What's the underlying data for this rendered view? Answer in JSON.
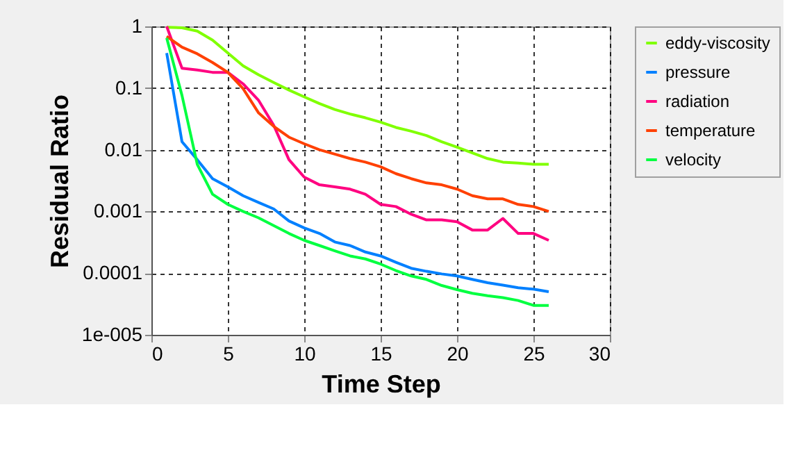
{
  "chart_data": {
    "type": "line",
    "xlabel": "Time Step",
    "ylabel": "Residual Ratio",
    "x": [
      1,
      2,
      3,
      4,
      5,
      6,
      7,
      8,
      9,
      10,
      11,
      12,
      13,
      14,
      15,
      16,
      17,
      18,
      19,
      20,
      21,
      22,
      23,
      24,
      25,
      26
    ],
    "series": [
      {
        "name": "eddy-viscosity",
        "color": "#80ff00",
        "values": [
          0.97,
          0.95,
          0.84,
          0.6,
          0.37,
          0.23,
          0.165,
          0.123,
          0.093,
          0.072,
          0.056,
          0.045,
          0.038,
          0.033,
          0.028,
          0.023,
          0.02,
          0.017,
          0.0135,
          0.011,
          0.0089,
          0.0072,
          0.0063,
          0.0061,
          0.0058,
          0.0058
        ]
      },
      {
        "name": "pressure",
        "color": "#0080ff",
        "values": [
          0.37,
          0.0135,
          0.0069,
          0.0034,
          0.0025,
          0.0018,
          0.0014,
          0.0011,
          0.0007,
          0.00054,
          0.00044,
          0.00032,
          0.00028,
          0.00022,
          0.00019,
          0.00015,
          0.00012,
          0.000107,
          9.7e-05,
          9e-05,
          7.9e-05,
          7e-05,
          6.4e-05,
          5.8e-05,
          5.5e-05,
          5e-05
        ]
      },
      {
        "name": "radiation",
        "color": "#ff0080",
        "values": [
          1.0,
          0.21,
          0.196,
          0.18,
          0.18,
          0.117,
          0.064,
          0.025,
          0.0069,
          0.0036,
          0.0027,
          0.0025,
          0.0023,
          0.0019,
          0.0013,
          0.0012,
          0.0009,
          0.00073,
          0.00073,
          0.00068,
          0.0005,
          0.0005,
          0.00077,
          0.00044,
          0.00044,
          0.00034
        ]
      },
      {
        "name": "temperature",
        "color": "#ff4000",
        "values": [
          0.69,
          0.46,
          0.36,
          0.26,
          0.18,
          0.098,
          0.04,
          0.024,
          0.016,
          0.0125,
          0.01,
          0.0085,
          0.0072,
          0.0063,
          0.0053,
          0.0041,
          0.0034,
          0.0029,
          0.0027,
          0.0023,
          0.0018,
          0.0016,
          0.0016,
          0.0013,
          0.0012,
          0.001
        ]
      },
      {
        "name": "velocity",
        "color": "#00ff40",
        "values": [
          0.65,
          0.076,
          0.0058,
          0.0019,
          0.0013,
          0.001,
          0.00079,
          0.00059,
          0.00044,
          0.00034,
          0.00028,
          0.00023,
          0.00019,
          0.00017,
          0.00014,
          0.00011,
          9e-05,
          7.9e-05,
          6.3e-05,
          5.4e-05,
          4.7e-05,
          4.3e-05,
          4e-05,
          3.6e-05,
          3e-05,
          3e-05
        ]
      }
    ],
    "xlim": [
      0,
      30
    ],
    "xticks": [
      0,
      5,
      10,
      15,
      20,
      25,
      30
    ],
    "ylim": [
      1e-05,
      1
    ],
    "yticks": [
      1,
      0.1,
      0.01,
      0.001,
      0.0001,
      {
        "value": 1e-05,
        "label": "1e-005"
      }
    ],
    "log": "y",
    "grid": true,
    "legend": "right",
    "marker": "none",
    "line_style": "solid"
  }
}
